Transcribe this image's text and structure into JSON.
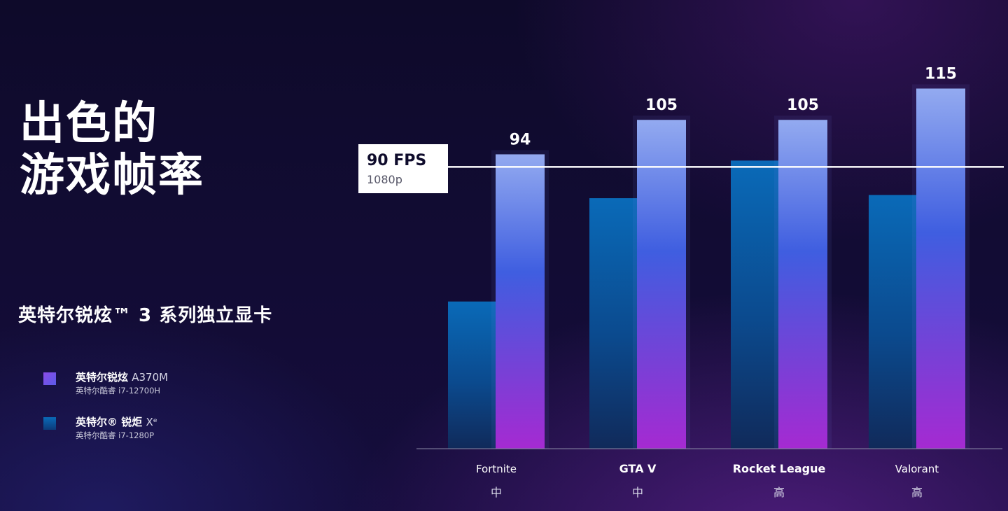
{
  "headline": [
    "出色的",
    "游戏帧率"
  ],
  "subtitle": "英特尔锐炫™ 3 系列独立显卡",
  "legend": [
    {
      "name": "英特尔锐炫",
      "model": "A370M",
      "cpu": "英特尔酷睿 i7-12700H"
    },
    {
      "name": "英特尔® 锐炬",
      "model": "Xᵉ",
      "cpu": "英特尔酷睿 i7-1280P"
    }
  ],
  "chart_data": {
    "type": "bar",
    "categories": [
      "Fortnite",
      "GTA V",
      "Rocket League",
      "Valorant"
    ],
    "settings": [
      "中",
      "中",
      "高",
      "高"
    ],
    "series": [
      {
        "name": "英特尔® 锐炬 Xᵉ",
        "values": [
          47,
          80,
          92,
          81
        ],
        "color": "#0a6ab8"
      },
      {
        "name": "英特尔锐炫 A370M",
        "values": [
          94,
          105,
          105,
          115
        ],
        "color": "#6a4be6",
        "labels": [
          "94",
          "105",
          "105",
          "115"
        ]
      }
    ],
    "reference_line": {
      "value": 90,
      "label": "90 FPS",
      "sublabel": "1080p"
    },
    "ylim": [
      0,
      128
    ]
  }
}
